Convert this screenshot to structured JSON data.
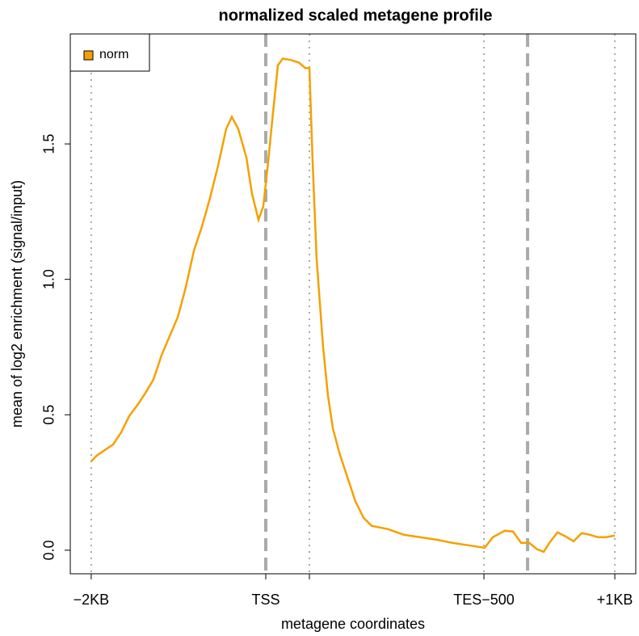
{
  "chart_data": {
    "type": "line",
    "title": "normalized scaled metagene profile",
    "xlabel": "metagene coordinates",
    "ylabel": "mean of log2 enrichment (signal/input)",
    "xlim": [
      -2240,
      4240
    ],
    "ylim": [
      -0.087,
      1.906
    ],
    "xticks": [
      {
        "value": -2000,
        "label": "−2KB"
      },
      {
        "value": 0,
        "label": "TSS"
      },
      {
        "value": 500,
        "label": null
      },
      {
        "value": 2500,
        "label": "TES−500"
      },
      {
        "value": 4000,
        "label": "+1KB"
      }
    ],
    "yticks": [
      {
        "value": 0,
        "label": "0.0"
      },
      0.5,
      {
        "value": 1,
        "label": "1.0"
      },
      1.5
    ],
    "dotted_lines": [
      -2000,
      500,
      2500,
      4000
    ],
    "dashed_lines": [
      0,
      3000
    ],
    "legend": "topleft",
    "x": [
      -2000,
      -1935,
      -1843,
      -1750,
      -1657,
      -1565,
      -1472,
      -1380,
      -1287,
      -1194,
      -1102,
      -1009,
      -917,
      -824,
      -731,
      -639,
      -546,
      -454,
      -389,
      -315,
      -222,
      -157,
      -83,
      -28,
      28,
      83,
      139,
      194,
      287,
      380,
      454,
      500,
      537,
      583,
      657,
      713,
      769,
      843,
      935,
      1028,
      1120,
      1213,
      1398,
      1583,
      1769,
      1954,
      2139,
      2324,
      2509,
      2602,
      2741,
      2833,
      2926,
      3019,
      3111,
      3185,
      3250,
      3343,
      3435,
      3528,
      3620,
      3713,
      3806,
      3898,
      4000
    ],
    "series": [
      {
        "name": "norm",
        "color": "#f5a000",
        "values": [
          0.328,
          0.35,
          0.37,
          0.39,
          0.435,
          0.495,
          0.535,
          0.58,
          0.63,
          0.72,
          0.79,
          0.86,
          0.97,
          1.105,
          1.195,
          1.3,
          1.42,
          1.555,
          1.6,
          1.555,
          1.45,
          1.315,
          1.22,
          1.27,
          1.435,
          1.615,
          1.79,
          1.815,
          1.81,
          1.8,
          1.78,
          1.78,
          1.435,
          1.075,
          0.75,
          0.57,
          0.45,
          0.36,
          0.27,
          0.18,
          0.12,
          0.09,
          0.078,
          0.057,
          0.048,
          0.039,
          0.027,
          0.018,
          0.009,
          0.048,
          0.072,
          0.069,
          0.027,
          0.027,
          0.003,
          -0.006,
          0.027,
          0.066,
          0.051,
          0.033,
          0.063,
          0.057,
          0.048,
          0.048,
          0.054
        ]
      }
    ]
  }
}
